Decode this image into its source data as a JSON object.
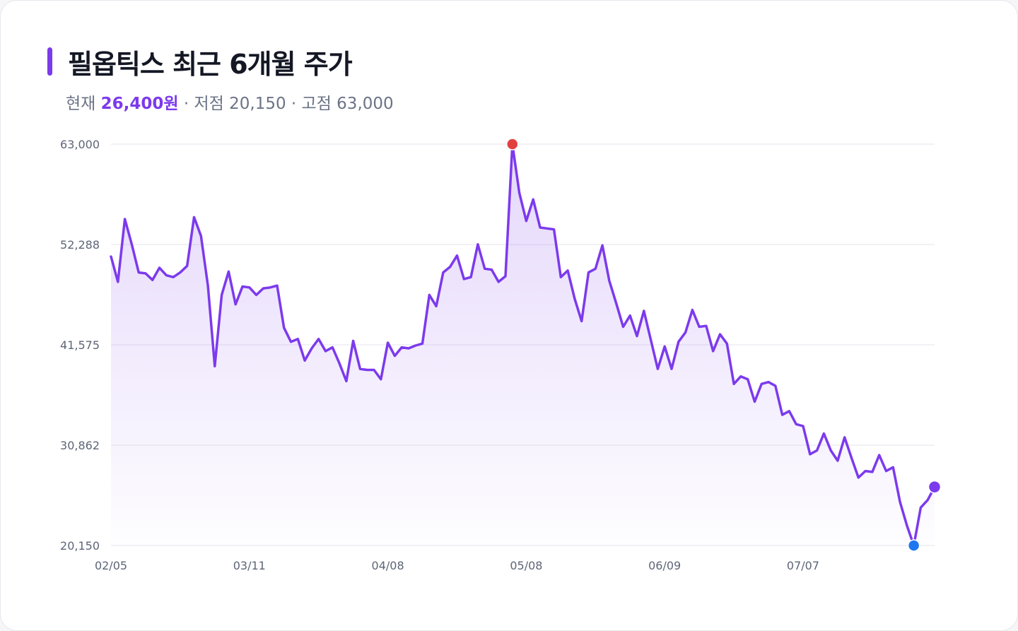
{
  "header": {
    "title": "필옵틱스 최근 6개월 주가",
    "current_label": "현재",
    "current_value": "26,400원",
    "low_text": "· 저점 20,150",
    "high_text": "· 고점 63,000"
  },
  "colors": {
    "accent": "#7c3aed",
    "high_marker": "#e0413f",
    "low_marker": "#1f77f0",
    "grid": "#e6e6ee"
  },
  "chart_data": {
    "type": "area",
    "title": "필옵틱스 최근 6개월 주가",
    "xlabel": "",
    "ylabel": "",
    "ylim": [
      20150,
      63000
    ],
    "yticks": [
      20150,
      30862,
      41575,
      52288,
      63000
    ],
    "ytick_labels": [
      "20,150",
      "30,862",
      "41,575",
      "52,288",
      "63,000"
    ],
    "xtick_labels": [
      "02/05",
      "03/11",
      "04/08",
      "05/08",
      "06/09",
      "07/07"
    ],
    "xtick_index": [
      0,
      20,
      40,
      60,
      80,
      100
    ],
    "grid": true,
    "legend": "none",
    "high": {
      "index": 58,
      "value": 63000,
      "label": "고점"
    },
    "low": {
      "index": 116,
      "value": 20150,
      "label": "저점"
    },
    "current": {
      "index": 119,
      "value": 26400,
      "label": "현재"
    },
    "series": [
      {
        "values": [
          51000,
          48300,
          55000,
          52300,
          49300,
          49200,
          48500,
          49800,
          49000,
          48800,
          49300,
          50000,
          55200,
          53200,
          47900,
          39300,
          46900,
          49400,
          45900,
          47800,
          47700,
          46900,
          47600,
          47700,
          47900,
          43400,
          41900,
          42200,
          39900,
          41200,
          42200,
          40900,
          41300,
          39600,
          37700,
          42000,
          39000,
          38900,
          38900,
          37900,
          41800,
          40400,
          41300,
          41200,
          41500,
          41700,
          46900,
          45700,
          49300,
          49900,
          51100,
          48600,
          48800,
          52300,
          49700,
          49600,
          48300,
          48900,
          63000,
          57800,
          54800,
          57100,
          54100,
          54000,
          53900,
          48800,
          49500,
          46500,
          44100,
          49300,
          49700,
          52200,
          48400,
          46000,
          43500,
          44700,
          42500,
          45200,
          42100,
          39000,
          41400,
          39000,
          41900,
          42900,
          45300,
          43500,
          43600,
          40900,
          42700,
          41700,
          37400,
          38200,
          37900,
          35500,
          37400,
          37600,
          37200,
          34100,
          34500,
          33100,
          32900,
          29900,
          30300,
          32100,
          30300,
          29200,
          31700,
          29500,
          27400,
          28100,
          28000,
          29800,
          28100,
          28500,
          24800,
          22300,
          20150,
          24200,
          25000,
          26400
        ]
      }
    ]
  }
}
